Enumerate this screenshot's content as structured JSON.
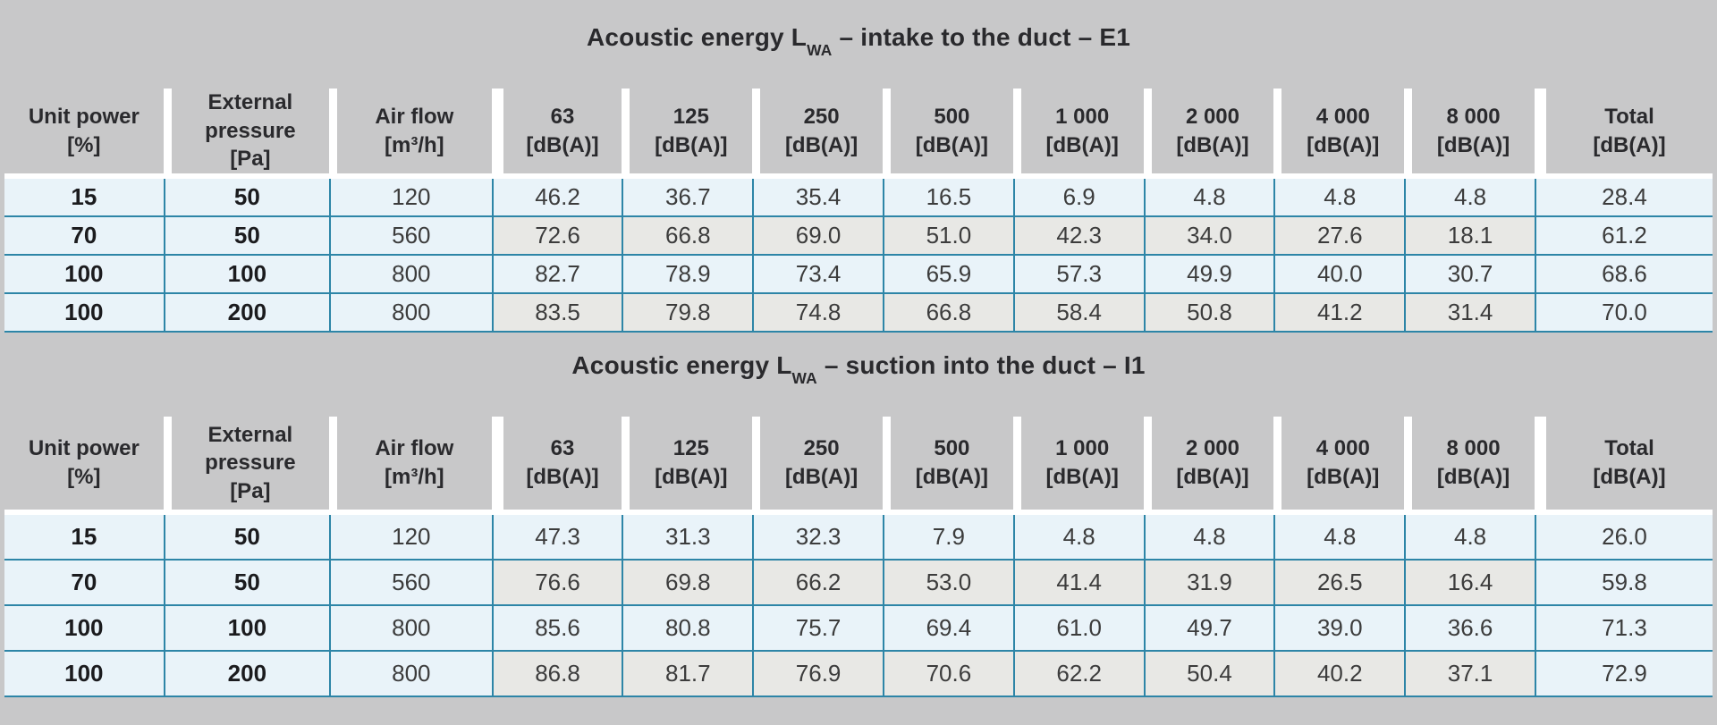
{
  "colors": {
    "background_gray": "#c8c8c9",
    "row_blue": "#e9f3f9",
    "row_alt_gray": "#e8e8e5",
    "rule_teal": "#2d85a7",
    "text_dark": "#2a2a2d"
  },
  "tables": [
    {
      "id": "E1",
      "title": {
        "prefix": "Acoustic energy L",
        "subscript": "WA",
        "suffix": " – intake to the duct – E1"
      },
      "columns": [
        {
          "name": "Unit power",
          "unit": "[%]"
        },
        {
          "name": "External pressure",
          "unit": "[Pa]"
        },
        {
          "name": "Air flow",
          "unit": "[m³/h]"
        },
        {
          "name": "63",
          "unit": "[dB(A)]"
        },
        {
          "name": "125",
          "unit": "[dB(A)]"
        },
        {
          "name": "250",
          "unit": "[dB(A)]"
        },
        {
          "name": "500",
          "unit": "[dB(A)]"
        },
        {
          "name": "1 000",
          "unit": "[dB(A)]"
        },
        {
          "name": "2 000",
          "unit": "[dB(A)]"
        },
        {
          "name": "4 000",
          "unit": "[dB(A)]"
        },
        {
          "name": "8 000",
          "unit": "[dB(A)]"
        },
        {
          "name": "Total",
          "unit": "[dB(A)]"
        }
      ],
      "rows": [
        [
          "15",
          "50",
          "120",
          "46.2",
          "36.7",
          "35.4",
          "16.5",
          "6.9",
          "4.8",
          "4.8",
          "4.8",
          "28.4"
        ],
        [
          "70",
          "50",
          "560",
          "72.6",
          "66.8",
          "69.0",
          "51.0",
          "42.3",
          "34.0",
          "27.6",
          "18.1",
          "61.2"
        ],
        [
          "100",
          "100",
          "800",
          "82.7",
          "78.9",
          "73.4",
          "65.9",
          "57.3",
          "49.9",
          "40.0",
          "30.7",
          "68.6"
        ],
        [
          "100",
          "200",
          "800",
          "83.5",
          "79.8",
          "74.8",
          "66.8",
          "58.4",
          "50.8",
          "41.2",
          "31.4",
          "70.0"
        ]
      ]
    },
    {
      "id": "I1",
      "title": {
        "prefix": "Acoustic energy L",
        "subscript": "WA",
        "suffix": " – suction into the duct – I1"
      },
      "columns": [
        {
          "name": "Unit power",
          "unit": "[%]"
        },
        {
          "name": "External pressure",
          "unit": "[Pa]"
        },
        {
          "name": "Air flow",
          "unit": "[m³/h]"
        },
        {
          "name": "63",
          "unit": "[dB(A)]"
        },
        {
          "name": "125",
          "unit": "[dB(A)]"
        },
        {
          "name": "250",
          "unit": "[dB(A)]"
        },
        {
          "name": "500",
          "unit": "[dB(A)]"
        },
        {
          "name": "1 000",
          "unit": "[dB(A)]"
        },
        {
          "name": "2 000",
          "unit": "[dB(A)]"
        },
        {
          "name": "4 000",
          "unit": "[dB(A)]"
        },
        {
          "name": "8 000",
          "unit": "[dB(A)]"
        },
        {
          "name": "Total",
          "unit": "[dB(A)]"
        }
      ],
      "rows": [
        [
          "15",
          "50",
          "120",
          "47.3",
          "31.3",
          "32.3",
          "7.9",
          "4.8",
          "4.8",
          "4.8",
          "4.8",
          "26.0"
        ],
        [
          "70",
          "50",
          "560",
          "76.6",
          "69.8",
          "66.2",
          "53.0",
          "41.4",
          "31.9",
          "26.5",
          "16.4",
          "59.8"
        ],
        [
          "100",
          "100",
          "800",
          "85.6",
          "80.8",
          "75.7",
          "69.4",
          "61.0",
          "49.7",
          "39.0",
          "36.6",
          "71.3"
        ],
        [
          "100",
          "200",
          "800",
          "86.8",
          "81.7",
          "76.9",
          "70.6",
          "62.2",
          "50.4",
          "40.2",
          "37.1",
          "72.9"
        ]
      ]
    }
  ]
}
